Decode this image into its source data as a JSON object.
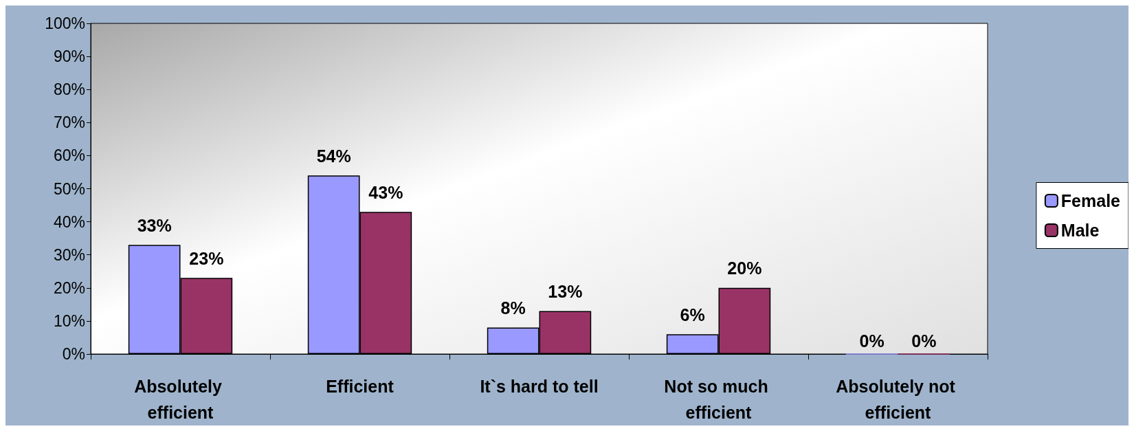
{
  "chart_data": {
    "type": "bar",
    "categories": [
      "Absolutely efficient",
      "Efficient",
      "It`s hard to tell",
      "Not so much efficient",
      "Absolutely not efficient"
    ],
    "series": [
      {
        "name": "Female",
        "color": "#9999ff",
        "values": [
          33,
          54,
          8,
          6,
          0
        ],
        "value_labels": [
          "33%",
          "54%",
          "8%",
          "6%",
          "0%"
        ]
      },
      {
        "name": "Male",
        "color": "#993366",
        "values": [
          23,
          43,
          13,
          20,
          0
        ],
        "value_labels": [
          "23%",
          "43%",
          "13%",
          "20%",
          "0%"
        ]
      }
    ],
    "ylim": [
      0,
      100
    ],
    "yticks": [
      {
        "value": 0,
        "label": "0%"
      },
      {
        "value": 10,
        "label": "10%"
      },
      {
        "value": 20,
        "label": "20%"
      },
      {
        "value": 30,
        "label": "30%"
      },
      {
        "value": 40,
        "label": "40%"
      },
      {
        "value": 50,
        "label": "50%"
      },
      {
        "value": 60,
        "label": "60%"
      },
      {
        "value": 70,
        "label": "70%"
      },
      {
        "value": 80,
        "label": "80%"
      },
      {
        "value": 90,
        "label": "90%"
      },
      {
        "value": 100,
        "label": "100%"
      }
    ],
    "grid": false,
    "legend": "right"
  }
}
